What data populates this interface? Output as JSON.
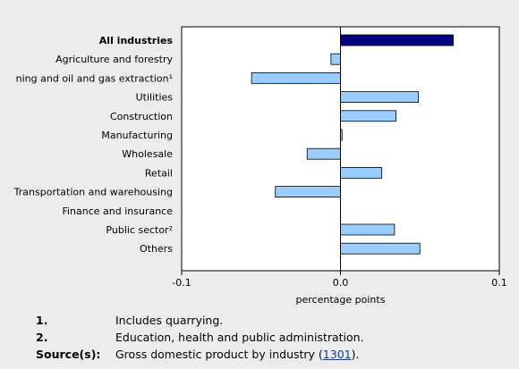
{
  "chart_data": {
    "type": "bar",
    "orientation": "horizontal",
    "categories": [
      "All industries",
      "Agriculture and forestry",
      "ning and oil and gas extraction¹",
      "Utilities",
      "Construction",
      "Manufacturing",
      "Wholesale",
      "Retail",
      "Transportation and warehousing",
      "Finance and insurance",
      "Public sector²",
      "Others"
    ],
    "values": [
      0.071,
      -0.006,
      -0.056,
      0.049,
      0.035,
      0.001,
      -0.021,
      0.026,
      -0.041,
      0.0,
      0.034,
      0.05
    ],
    "highlight_category": "All industries",
    "xlabel": "percentage points",
    "xlim": [
      -0.1,
      0.1
    ],
    "xticks": [
      "-0.1",
      "0.0",
      "0.1"
    ],
    "grid": false,
    "colors": {
      "highlight": "#000080",
      "bar": "#99ccff",
      "bar_stroke": "#000000"
    }
  },
  "notes": [
    {
      "key": "1.",
      "text": "Includes quarrying."
    },
    {
      "key": "2.",
      "text": "Education, health and public administration."
    }
  ],
  "source": {
    "key": "Source(s):",
    "text_before": "Gross domestic product by industry (",
    "link": "1301",
    "text_after": ")."
  }
}
